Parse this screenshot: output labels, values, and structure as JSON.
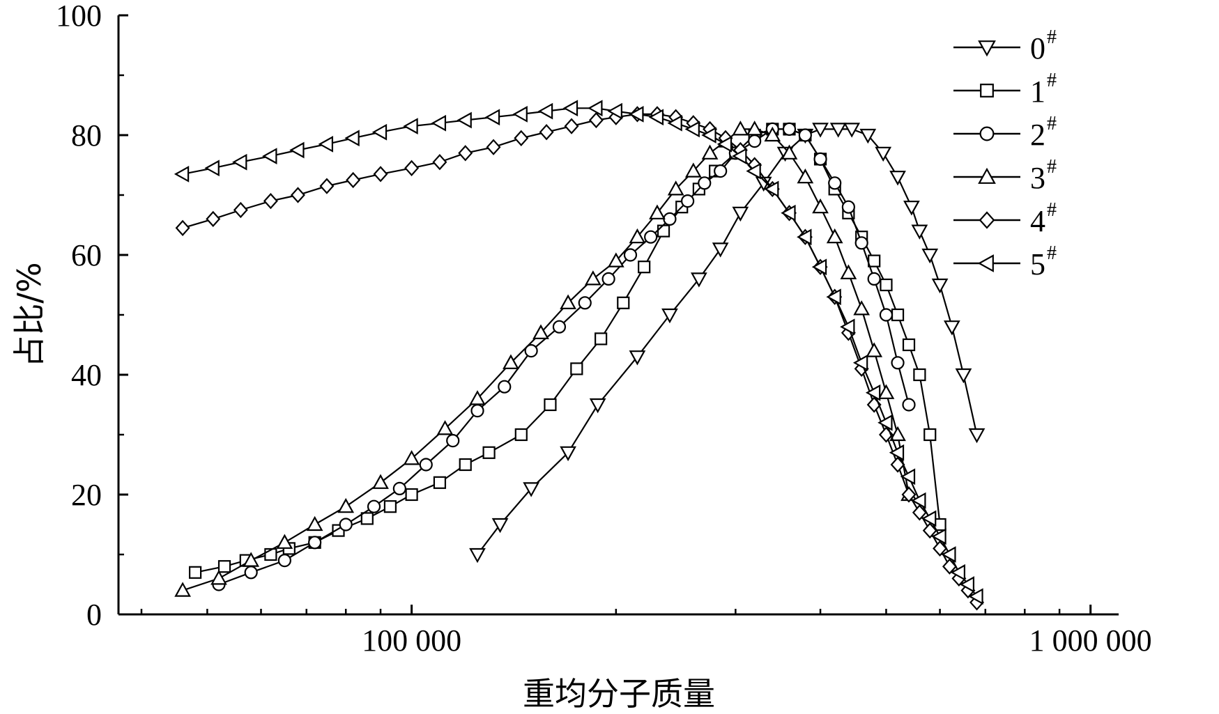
{
  "chart_data": {
    "type": "line",
    "xlabel": "重均分子质量",
    "ylabel": "占比/%",
    "xscale": "log",
    "xlim": [
      37000,
      1100000
    ],
    "ylim": [
      0,
      100
    ],
    "xticks": [
      {
        "value": 100000,
        "label": "100 000"
      },
      {
        "value": 1000000,
        "label": "1 000 000"
      }
    ],
    "yticks": [
      {
        "value": 0,
        "label": "0"
      },
      {
        "value": 20,
        "label": "20"
      },
      {
        "value": 40,
        "label": "40"
      },
      {
        "value": 60,
        "label": "60"
      },
      {
        "value": 80,
        "label": "80"
      },
      {
        "value": 100,
        "label": "100"
      }
    ],
    "grid": false,
    "legend_position": "top-right",
    "series": [
      {
        "name": "0",
        "sup": "#",
        "marker": "triangle-down",
        "x": [
          125000,
          135000,
          150000,
          170000,
          188000,
          215000,
          240000,
          265000,
          285000,
          305000,
          330000,
          355000,
          380000,
          400000,
          425000,
          445000,
          470000,
          495000,
          520000,
          545000,
          560000,
          580000,
          600000,
          625000,
          650000,
          680000
        ],
        "y": [
          10,
          15,
          21,
          27,
          35,
          43,
          50,
          56,
          61,
          67,
          72,
          77,
          80,
          81,
          81,
          81,
          80,
          77,
          73,
          68,
          64,
          60,
          55,
          48,
          40,
          30
        ]
      },
      {
        "name": "1",
        "sup": "#",
        "marker": "square",
        "x": [
          48000,
          53000,
          57000,
          62000,
          66000,
          72000,
          78000,
          86000,
          93000,
          100000,
          110000,
          120000,
          130000,
          145000,
          160000,
          175000,
          190000,
          205000,
          220000,
          235000,
          250000,
          265000,
          280000,
          300000,
          320000,
          340000,
          360000,
          380000,
          400000,
          420000,
          440000,
          460000,
          480000,
          500000,
          520000,
          540000,
          560000,
          580000,
          600000
        ],
        "y": [
          7,
          8,
          9,
          10,
          11,
          12,
          14,
          16,
          18,
          20,
          22,
          25,
          27,
          30,
          35,
          41,
          46,
          52,
          58,
          64,
          68,
          71,
          74,
          77,
          80,
          81,
          81,
          80,
          76,
          71,
          67,
          63,
          59,
          55,
          50,
          45,
          40,
          30,
          15
        ]
      },
      {
        "name": "2",
        "sup": "#",
        "marker": "circle",
        "x": [
          52000,
          58000,
          65000,
          72000,
          80000,
          88000,
          96000,
          105000,
          115000,
          125000,
          137000,
          150000,
          165000,
          180000,
          195000,
          210000,
          225000,
          240000,
          255000,
          270000,
          285000,
          300000,
          320000,
          340000,
          360000,
          380000,
          400000,
          420000,
          440000,
          460000,
          480000,
          500000,
          520000,
          540000
        ],
        "y": [
          5,
          7,
          9,
          12,
          15,
          18,
          21,
          25,
          29,
          34,
          38,
          44,
          48,
          52,
          56,
          60,
          63,
          66,
          69,
          72,
          74,
          77,
          79,
          81,
          81,
          80,
          76,
          72,
          68,
          62,
          56,
          50,
          42,
          35
        ]
      },
      {
        "name": "3",
        "sup": "#",
        "marker": "triangle-up",
        "x": [
          46000,
          52000,
          58000,
          65000,
          72000,
          80000,
          90000,
          100000,
          112000,
          125000,
          140000,
          155000,
          170000,
          185000,
          200000,
          215000,
          230000,
          245000,
          260000,
          275000,
          290000,
          305000,
          320000,
          340000,
          360000,
          380000,
          400000,
          420000,
          440000,
          460000,
          480000,
          500000,
          520000,
          540000
        ],
        "y": [
          4,
          6,
          9,
          12,
          15,
          18,
          22,
          26,
          31,
          36,
          42,
          47,
          52,
          56,
          59,
          63,
          67,
          71,
          74,
          77,
          79,
          81,
          81,
          80,
          77,
          73,
          68,
          63,
          57,
          51,
          44,
          37,
          30,
          20
        ]
      },
      {
        "name": "4",
        "sup": "#",
        "marker": "diamond",
        "x": [
          46000,
          51000,
          56000,
          62000,
          68000,
          75000,
          82000,
          90000,
          100000,
          110000,
          120000,
          132000,
          145000,
          158000,
          172000,
          187000,
          200000,
          215000,
          230000,
          245000,
          260000,
          275000,
          290000,
          305000,
          320000,
          340000,
          360000,
          380000,
          400000,
          420000,
          440000,
          460000,
          480000,
          500000,
          520000,
          540000,
          560000,
          580000,
          600000,
          620000,
          640000,
          660000,
          680000
        ],
        "y": [
          64.5,
          66,
          67.5,
          69,
          70,
          71.5,
          72.5,
          73.5,
          74.5,
          75.5,
          77,
          78,
          79.5,
          80.5,
          81.5,
          82.5,
          83,
          83.5,
          83.5,
          83,
          82,
          81,
          79.5,
          77.5,
          75,
          71,
          67,
          63,
          58,
          53,
          47,
          41,
          35,
          30,
          25,
          20,
          17,
          14,
          11,
          8,
          6,
          4,
          2
        ]
      },
      {
        "name": "5",
        "sup": "#",
        "marker": "triangle-left",
        "x": [
          46000,
          51000,
          56000,
          62000,
          68000,
          75000,
          82000,
          90000,
          100000,
          110000,
          120000,
          132000,
          145000,
          158000,
          172000,
          187000,
          200000,
          215000,
          230000,
          245000,
          260000,
          275000,
          290000,
          305000,
          320000,
          340000,
          360000,
          380000,
          400000,
          420000,
          440000,
          460000,
          480000,
          500000,
          520000,
          540000,
          560000,
          580000,
          600000,
          620000,
          640000,
          660000,
          680000
        ],
        "y": [
          73.5,
          74.5,
          75.5,
          76.5,
          77.5,
          78.5,
          79.5,
          80.5,
          81.5,
          82,
          82.5,
          83,
          83.5,
          84,
          84.5,
          84.5,
          84,
          83.5,
          83,
          82,
          81,
          80,
          78.5,
          76.5,
          74,
          71,
          67,
          63,
          58,
          53,
          48,
          42,
          37,
          32,
          27,
          23,
          19,
          16,
          13,
          10,
          7,
          5,
          3
        ]
      }
    ]
  }
}
